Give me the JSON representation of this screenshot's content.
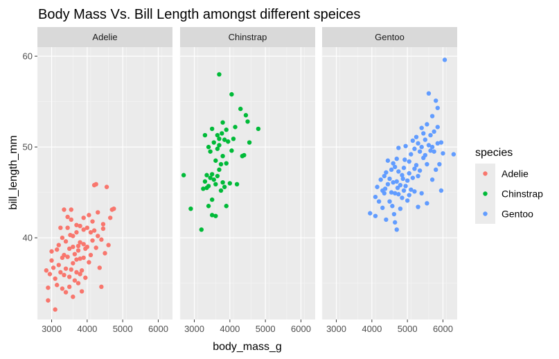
{
  "chart_data": {
    "type": "scatter",
    "title": "Body Mass Vs. Bill Length amongst different speices",
    "xlabel": "body_mass_g",
    "ylabel": "bill_length_mm",
    "xlim": [
      2600,
      6400
    ],
    "ylim": [
      31,
      61
    ],
    "xticks": [
      3000,
      4000,
      5000,
      6000
    ],
    "yticks": [
      40,
      50,
      60
    ],
    "grid": true,
    "legend": {
      "title": "species",
      "position": "right"
    },
    "facets": [
      "Adelie",
      "Chinstrap",
      "Gentoo"
    ],
    "colors": {
      "Adelie": "#F8766D",
      "Chinstrap": "#00BA38",
      "Gentoo": "#619CFF"
    },
    "series": [
      {
        "name": "Adelie",
        "points": [
          [
            2850,
            36.4
          ],
          [
            2900,
            33.1
          ],
          [
            2900,
            34.5
          ],
          [
            2950,
            36.0
          ],
          [
            3000,
            38.5
          ],
          [
            3000,
            37.5
          ],
          [
            3050,
            36.7
          ],
          [
            3100,
            32.1
          ],
          [
            3100,
            35.5
          ],
          [
            3150,
            34.8
          ],
          [
            3150,
            38.7
          ],
          [
            3200,
            37.0
          ],
          [
            3200,
            39.2
          ],
          [
            3250,
            36.2
          ],
          [
            3250,
            41.1
          ],
          [
            3300,
            34.4
          ],
          [
            3300,
            37.8
          ],
          [
            3300,
            40.0
          ],
          [
            3350,
            35.9
          ],
          [
            3350,
            38.1
          ],
          [
            3400,
            34.0
          ],
          [
            3400,
            36.6
          ],
          [
            3400,
            39.6
          ],
          [
            3450,
            37.9
          ],
          [
            3450,
            41.1
          ],
          [
            3500,
            34.6
          ],
          [
            3500,
            35.7
          ],
          [
            3500,
            38.8
          ],
          [
            3525,
            40.3
          ],
          [
            3550,
            36.5
          ],
          [
            3550,
            42.0
          ],
          [
            3550,
            43.1
          ],
          [
            3600,
            33.5
          ],
          [
            3600,
            37.2
          ],
          [
            3600,
            39.0
          ],
          [
            3650,
            35.3
          ],
          [
            3650,
            38.2
          ],
          [
            3700,
            36.2
          ],
          [
            3700,
            40.6
          ],
          [
            3700,
            41.4
          ],
          [
            3700,
            37.6
          ],
          [
            3750,
            35.0
          ],
          [
            3750,
            39.1
          ],
          [
            3750,
            38.6
          ],
          [
            3800,
            36.0
          ],
          [
            3800,
            37.7
          ],
          [
            3800,
            39.5
          ],
          [
            3800,
            41.3
          ],
          [
            3850,
            34.1
          ],
          [
            3850,
            36.4
          ],
          [
            3900,
            37.8
          ],
          [
            3900,
            40.9
          ],
          [
            3900,
            42.2
          ],
          [
            3950,
            38.8
          ],
          [
            3950,
            35.6
          ],
          [
            4000,
            41.1
          ],
          [
            4000,
            39.0
          ],
          [
            4050,
            37.3
          ],
          [
            4050,
            42.5
          ],
          [
            4100,
            40.6
          ],
          [
            4100,
            38.1
          ],
          [
            4150,
            41.8
          ],
          [
            4150,
            39.7
          ],
          [
            4200,
            45.8
          ],
          [
            4200,
            40.8
          ],
          [
            4250,
            45.9
          ],
          [
            4250,
            38.9
          ],
          [
            4300,
            42.8
          ],
          [
            4300,
            40.2
          ],
          [
            4350,
            36.7
          ],
          [
            4400,
            34.6
          ],
          [
            4400,
            39.8
          ],
          [
            4450,
            41.5
          ],
          [
            4500,
            38.3
          ],
          [
            4550,
            45.6
          ],
          [
            4600,
            39.2
          ],
          [
            4650,
            42.2
          ],
          [
            4700,
            43.1
          ],
          [
            4750,
            43.2
          ],
          [
            3350,
            43.1
          ],
          [
            3450,
            42.3
          ],
          [
            3600,
            40.2
          ],
          [
            3900,
            39.3
          ],
          [
            4450,
            41.0
          ]
        ]
      },
      {
        "name": "Chinstrap",
        "points": [
          [
            2700,
            46.9
          ],
          [
            2900,
            43.2
          ],
          [
            3200,
            40.9
          ],
          [
            3250,
            45.4
          ],
          [
            3300,
            51.3
          ],
          [
            3300,
            46.2
          ],
          [
            3350,
            46.9
          ],
          [
            3350,
            45.5
          ],
          [
            3400,
            45.7
          ],
          [
            3400,
            50.0
          ],
          [
            3400,
            43.5
          ],
          [
            3450,
            46.6
          ],
          [
            3450,
            49.5
          ],
          [
            3500,
            42.5
          ],
          [
            3500,
            47.0
          ],
          [
            3500,
            52.0
          ],
          [
            3550,
            46.4
          ],
          [
            3550,
            50.5
          ],
          [
            3600,
            48.5
          ],
          [
            3600,
            45.9
          ],
          [
            3650,
            49.8
          ],
          [
            3650,
            51.3
          ],
          [
            3650,
            46.8
          ],
          [
            3700,
            58.0
          ],
          [
            3700,
            47.5
          ],
          [
            3700,
            50.2
          ],
          [
            3750,
            48.1
          ],
          [
            3750,
            45.2
          ],
          [
            3775,
            51.5
          ],
          [
            3800,
            49.0
          ],
          [
            3800,
            46.1
          ],
          [
            3800,
            52.7
          ],
          [
            3850,
            50.8
          ],
          [
            3850,
            45.6
          ],
          [
            3900,
            48.2
          ],
          [
            3900,
            51.9
          ],
          [
            3950,
            50.6
          ],
          [
            4000,
            46.0
          ],
          [
            4050,
            55.8
          ],
          [
            4050,
            49.6
          ],
          [
            4100,
            50.9
          ],
          [
            4150,
            52.2
          ],
          [
            4200,
            45.9
          ],
          [
            4300,
            54.2
          ],
          [
            4350,
            49.0
          ],
          [
            4400,
            49.1
          ],
          [
            4450,
            53.5
          ],
          [
            4500,
            52.8
          ],
          [
            4550,
            50.5
          ],
          [
            4800,
            52.0
          ],
          [
            3600,
            42.4
          ],
          [
            3500,
            44.2
          ],
          [
            3700,
            50.9
          ],
          [
            3900,
            43.5
          ]
        ]
      },
      {
        "name": "Gentoo",
        "points": [
          [
            3950,
            42.7
          ],
          [
            4100,
            44.5
          ],
          [
            4100,
            42.4
          ],
          [
            4150,
            45.6
          ],
          [
            4200,
            44.0
          ],
          [
            4250,
            46.4
          ],
          [
            4300,
            43.3
          ],
          [
            4300,
            45.2
          ],
          [
            4350,
            46.8
          ],
          [
            4350,
            44.9
          ],
          [
            4375,
            45.4
          ],
          [
            4400,
            47.2
          ],
          [
            4400,
            42.0
          ],
          [
            4450,
            48.5
          ],
          [
            4450,
            45.9
          ],
          [
            4500,
            46.5
          ],
          [
            4500,
            44.0
          ],
          [
            4550,
            47.5
          ],
          [
            4550,
            45.0
          ],
          [
            4575,
            43.5
          ],
          [
            4600,
            46.1
          ],
          [
            4600,
            48.2
          ],
          [
            4625,
            42.6
          ],
          [
            4650,
            47.8
          ],
          [
            4650,
            44.9
          ],
          [
            4650,
            41.7
          ],
          [
            4700,
            46.2
          ],
          [
            4700,
            48.7
          ],
          [
            4700,
            40.9
          ],
          [
            4725,
            45.5
          ],
          [
            4750,
            44.8
          ],
          [
            4750,
            47.3
          ],
          [
            4750,
            49.9
          ],
          [
            4800,
            45.8
          ],
          [
            4800,
            43.2
          ],
          [
            4850,
            46.9
          ],
          [
            4850,
            44.4
          ],
          [
            4875,
            46.5
          ],
          [
            4900,
            47.7
          ],
          [
            4900,
            45.2
          ],
          [
            4925,
            48.6
          ],
          [
            4950,
            45.7
          ],
          [
            4950,
            50.1
          ],
          [
            5000,
            46.3
          ],
          [
            5000,
            44.1
          ],
          [
            5050,
            48.4
          ],
          [
            5050,
            47.1
          ],
          [
            5100,
            45.3
          ],
          [
            5100,
            49.2
          ],
          [
            5150,
            50.7
          ],
          [
            5150,
            46.6
          ],
          [
            5200,
            47.6
          ],
          [
            5200,
            49.8
          ],
          [
            5200,
            45.1
          ],
          [
            5250,
            48.0
          ],
          [
            5250,
            51.1
          ],
          [
            5300,
            46.8
          ],
          [
            5300,
            50.4
          ],
          [
            5350,
            49.5
          ],
          [
            5350,
            47.4
          ],
          [
            5400,
            50.0
          ],
          [
            5400,
            52.1
          ],
          [
            5450,
            48.8
          ],
          [
            5450,
            51.5
          ],
          [
            5500,
            49.1
          ],
          [
            5500,
            50.8
          ],
          [
            5550,
            52.5
          ],
          [
            5550,
            48.1
          ],
          [
            5600,
            55.9
          ],
          [
            5600,
            50.2
          ],
          [
            5650,
            49.6
          ],
          [
            5650,
            51.3
          ],
          [
            5700,
            50.0
          ],
          [
            5700,
            53.4
          ],
          [
            5750,
            49.5
          ],
          [
            5750,
            51.7
          ],
          [
            5800,
            55.1
          ],
          [
            5800,
            47.5
          ],
          [
            5850,
            50.4
          ],
          [
            5850,
            54.3
          ],
          [
            5900,
            48.1
          ],
          [
            5950,
            50.5
          ],
          [
            5950,
            45.2
          ],
          [
            6000,
            49.3
          ],
          [
            6050,
            59.6
          ],
          [
            6300,
            49.2
          ],
          [
            5400,
            44.9
          ],
          [
            5300,
            43.4
          ],
          [
            5050,
            44.7
          ],
          [
            5550,
            43.8
          ],
          [
            5700,
            46.4
          ],
          [
            5850,
            52.2
          ]
        ]
      }
    ]
  }
}
